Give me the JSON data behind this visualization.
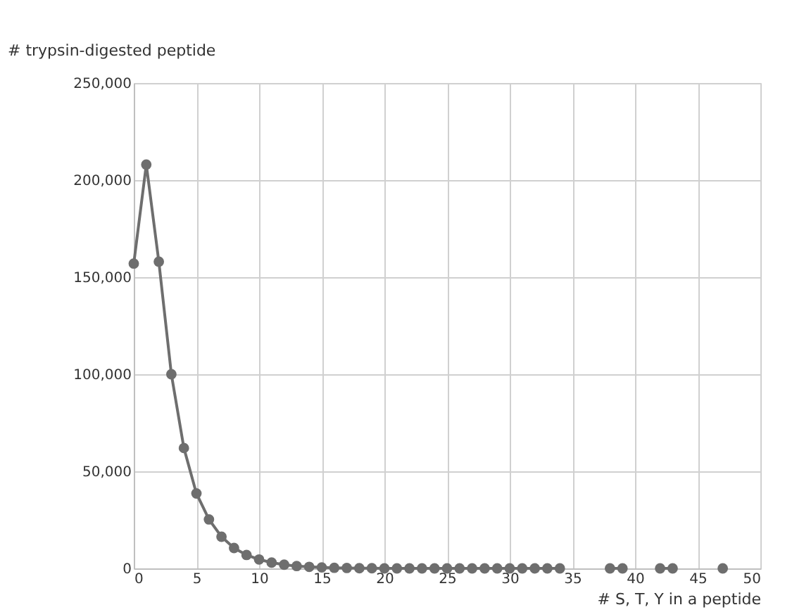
{
  "chart_data": {
    "type": "line",
    "ylabel": "# trypsin-digested peptide",
    "xlabel": "# S, T, Y in a peptide",
    "x": [
      0,
      1,
      2,
      3,
      4,
      5,
      6,
      7,
      8,
      9,
      10,
      11,
      12,
      13,
      14,
      15,
      16,
      17,
      18,
      19,
      20,
      21,
      22,
      23,
      24,
      25,
      26,
      27,
      28,
      29,
      30,
      31,
      32,
      33,
      34,
      35,
      36,
      37,
      38,
      39,
      40,
      41,
      42,
      43,
      44,
      45,
      46,
      47
    ],
    "series": [
      {
        "color": "#6e6e6e",
        "values": [
          157000,
          208000,
          158000,
          100000,
          62000,
          38600,
          25200,
          16300,
          10500,
          6900,
          4600,
          3000,
          1900,
          1200,
          800,
          500,
          300,
          200,
          100,
          100,
          0,
          0,
          0,
          0,
          0,
          0,
          0,
          0,
          0,
          0,
          0,
          0,
          0,
          0,
          0,
          null,
          null,
          null,
          0,
          0,
          null,
          null,
          0,
          0,
          null,
          null,
          null,
          0
        ]
      }
    ],
    "xlim": [
      0,
      50
    ],
    "xticks": [
      0,
      5,
      10,
      15,
      20,
      25,
      30,
      35,
      40,
      45,
      50
    ],
    "ylim": [
      0,
      250000
    ],
    "yticks": [
      0,
      {
        "value": 50000,
        "label": "50,000"
      },
      {
        "value": 100000,
        "label": "100,000"
      },
      {
        "value": 150000,
        "label": "150,000"
      },
      {
        "value": 200000,
        "label": "200,000"
      },
      {
        "value": 250000,
        "label": "250,000"
      }
    ],
    "grid": true,
    "marker": "circle",
    "line_style": "solid"
  }
}
